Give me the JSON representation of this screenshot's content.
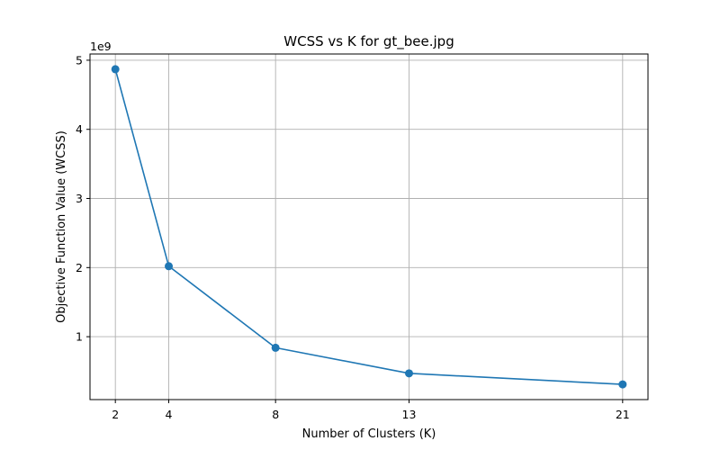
{
  "chart_data": {
    "type": "line",
    "title": "WCSS vs K for gt_bee.jpg",
    "xlabel": "Number of Clusters (K)",
    "ylabel": "Objective Function Value (WCSS)",
    "y_offset_label": "1e9",
    "x": [
      2,
      4,
      8,
      13,
      21
    ],
    "x_ticks": [
      2,
      4,
      8,
      13,
      21
    ],
    "x_tick_labels": [
      "2",
      "4",
      "8",
      "13",
      "21"
    ],
    "y_ticks": [
      1,
      2,
      3,
      4,
      5
    ],
    "y_tick_labels": [
      "1",
      "2",
      "3",
      "4",
      "5"
    ],
    "xlim": [
      1.05,
      21.95
    ],
    "ylim": [
      0.09,
      5.09
    ],
    "y_unit_multiplier": 1000000000,
    "series": [
      {
        "values": [
          4.87,
          2.02,
          0.84,
          0.47,
          0.31
        ],
        "color": "#1f77b4",
        "marker": "circle"
      }
    ],
    "grid": true,
    "legend": "none"
  }
}
